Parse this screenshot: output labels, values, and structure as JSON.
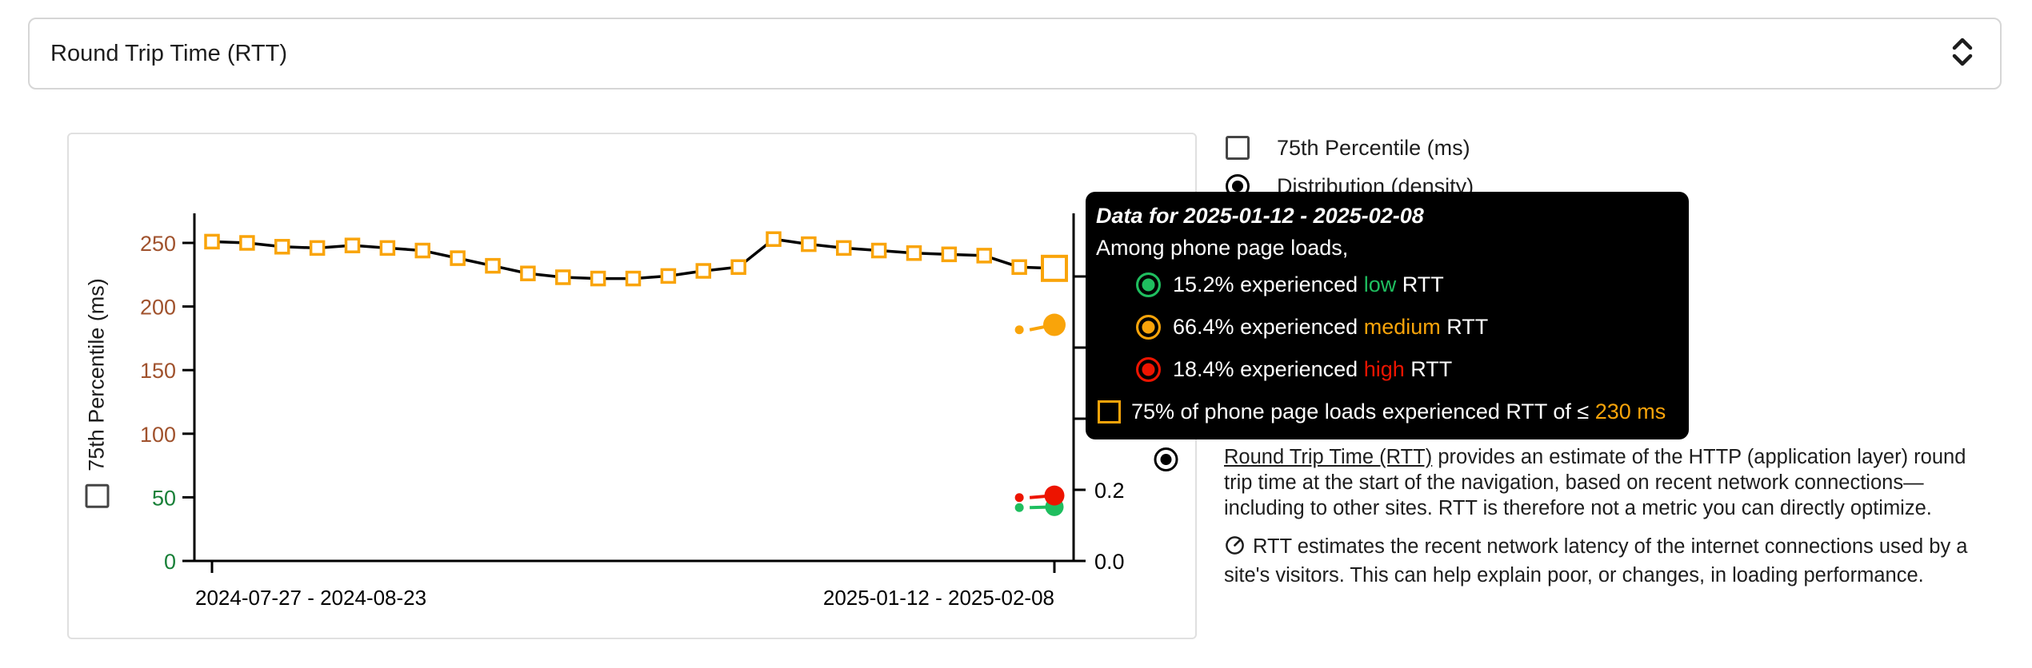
{
  "metric_selector": {
    "value": "Round Trip Time (RTT)"
  },
  "legend": {
    "items": [
      {
        "label": "75th Percentile (ms)",
        "control": "checkbox",
        "checked": false
      },
      {
        "label": "Distribution (density)",
        "control": "radio",
        "checked": true
      }
    ]
  },
  "chart_data": {
    "type": "line",
    "title": "",
    "x_points_count": 25,
    "x_tick_labels": {
      "first": "2024-07-27 - 2024-08-23",
      "last": "2025-01-12 - 2025-02-08"
    },
    "y_left": {
      "label": "75th Percentile (ms)",
      "range": [
        0,
        273
      ],
      "ticks": [
        {
          "value": 250,
          "color": "#A0522D"
        },
        {
          "value": 200,
          "color": "#A0522D"
        },
        {
          "value": 150,
          "color": "#A0522D"
        },
        {
          "value": 100,
          "color": "#A0522D"
        },
        {
          "value": 50,
          "color": "#188038"
        },
        {
          "value": 0,
          "color": "#188038"
        }
      ]
    },
    "y_right": {
      "label": "Distribution (density)",
      "range": [
        0,
        0.97
      ],
      "tick_values": [
        0,
        0.2,
        0.4,
        0.6,
        0.8
      ],
      "visible_tick_labels": [
        {
          "value": 0,
          "label": "0.0"
        },
        {
          "value": 0.2,
          "label": "0.2"
        }
      ]
    },
    "percentile_series": {
      "name": "75th Percentile (ms)",
      "marker": "open-square",
      "marker_color": "#F9A40A",
      "line_color": "#000000",
      "values": [
        251,
        250,
        247,
        246,
        248,
        246,
        244,
        238,
        232,
        226,
        223,
        222,
        222,
        224,
        228,
        231,
        253,
        249,
        246,
        244,
        242,
        241,
        240,
        231,
        230
      ],
      "highlighted_point_index": 24,
      "highlighted_value_ms": 230
    },
    "density_series": [
      {
        "name": "medium",
        "color": "#F9A40A",
        "points": [
          {
            "index": 23,
            "value": 0.65
          },
          {
            "index": 24,
            "value": 0.664
          }
        ]
      },
      {
        "name": "low",
        "color": "#1FBE5F",
        "points": [
          {
            "index": 23,
            "value": 0.15
          },
          {
            "index": 24,
            "value": 0.152
          }
        ]
      },
      {
        "name": "high",
        "color": "#ED1400",
        "points": [
          {
            "index": 23,
            "value": 0.178
          },
          {
            "index": 24,
            "value": 0.184
          }
        ]
      }
    ],
    "legend_position": "top-right",
    "grid": false
  },
  "tooltip": {
    "title": "Data for 2025-01-12 - 2025-02-08",
    "subtitle": "Among phone page loads,",
    "rows": [
      {
        "pct": "15.2%",
        "verb": "experienced",
        "rating": "low",
        "tail": "RTT",
        "color": "#1FBE5F"
      },
      {
        "pct": "66.4%",
        "verb": "experienced",
        "rating": "medium",
        "tail": "RTT",
        "color": "#F9A40A"
      },
      {
        "pct": "18.4%",
        "verb": "experienced",
        "rating": "high",
        "tail": "RTT",
        "color": "#ED1400"
      }
    ],
    "footer": {
      "text": "75% of phone page loads experienced RTT of ≤",
      "value": "230 ms",
      "value_color": "#F9A40A"
    }
  },
  "description": {
    "p1_link": "Round Trip Time (RTT)",
    "p1_rest": " provides an estimate of the HTTP (application layer) round trip time at the start of the navigation, based on recent network connections—including to other sites. RTT is therefore not a metric you can directly optimize.",
    "p2": "RTT estimates the recent network latency of the internet connections used by a site's visitors. This can help explain poor, or changes, in loading performance."
  }
}
